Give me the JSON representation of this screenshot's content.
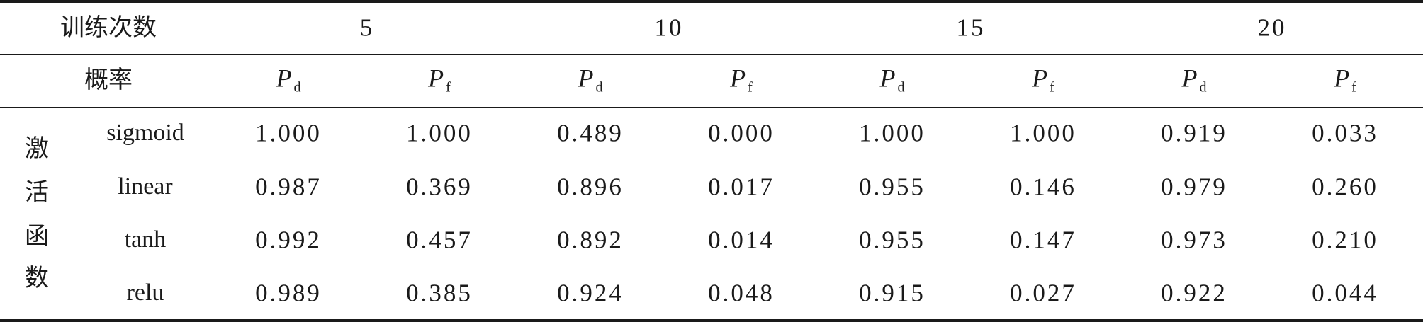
{
  "table": {
    "header_row1": {
      "label": "训练次数",
      "epochs": [
        "5",
        "10",
        "15",
        "20"
      ]
    },
    "header_row2": {
      "label": "概率",
      "metrics": [
        {
          "symbol": "P",
          "sub": "d"
        },
        {
          "symbol": "P",
          "sub": "f"
        },
        {
          "symbol": "P",
          "sub": "d"
        },
        {
          "symbol": "P",
          "sub": "f"
        },
        {
          "symbol": "P",
          "sub": "d"
        },
        {
          "symbol": "P",
          "sub": "f"
        },
        {
          "symbol": "P",
          "sub": "d"
        },
        {
          "symbol": "P",
          "sub": "f"
        }
      ]
    },
    "group_label": [
      "激",
      "活",
      "函",
      "数"
    ],
    "rows": [
      {
        "name": "sigmoid",
        "values": [
          "1.000",
          "1.000",
          "0.489",
          "0.000",
          "1.000",
          "1.000",
          "0.919",
          "0.033"
        ]
      },
      {
        "name": "linear",
        "values": [
          "0.987",
          "0.369",
          "0.896",
          "0.017",
          "0.955",
          "0.146",
          "0.979",
          "0.260"
        ]
      },
      {
        "name": "tanh",
        "values": [
          "0.992",
          "0.457",
          "0.892",
          "0.014",
          "0.955",
          "0.147",
          "0.973",
          "0.210"
        ]
      },
      {
        "name": "relu",
        "values": [
          "0.989",
          "0.385",
          "0.924",
          "0.048",
          "0.915",
          "0.027",
          "0.922",
          "0.044"
        ]
      }
    ]
  }
}
